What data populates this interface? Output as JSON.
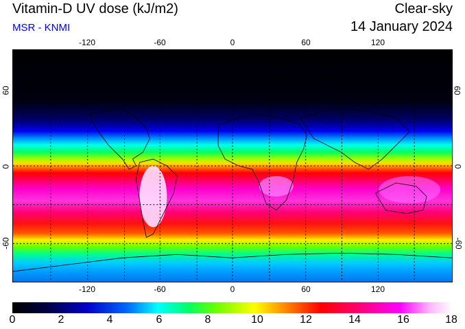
{
  "header": {
    "title": "Vitamin-D UV dose (kJ/m2)",
    "source": "MSR - KNMI",
    "source_color": "#0000ee",
    "mode": "Clear-sky",
    "date": "14 January 2024"
  },
  "map": {
    "projection": "equirectangular",
    "lon_ticks_top": [
      "-120",
      "-60",
      "0",
      "60",
      "120"
    ],
    "lon_ticks_bottom": [
      "-120",
      "-60",
      "0",
      "60",
      "120"
    ],
    "lat_ticks_left": [
      "60",
      "0",
      "-60"
    ],
    "lat_ticks_right": [
      "60",
      "0",
      "-60"
    ]
  },
  "colorbar": {
    "min": 0,
    "max": 18,
    "ticks": [
      "0",
      "2",
      "4",
      "6",
      "8",
      "10",
      "12",
      "14",
      "16",
      "18"
    ],
    "colors": [
      "#000000",
      "#000044",
      "#0000cc",
      "#0088ff",
      "#00ffff",
      "#00ff66",
      "#66ff00",
      "#ffff00",
      "#ff8800",
      "#ff0000",
      "#ff0066",
      "#ff00ff",
      "#ffbbff",
      "#ffffff"
    ]
  }
}
